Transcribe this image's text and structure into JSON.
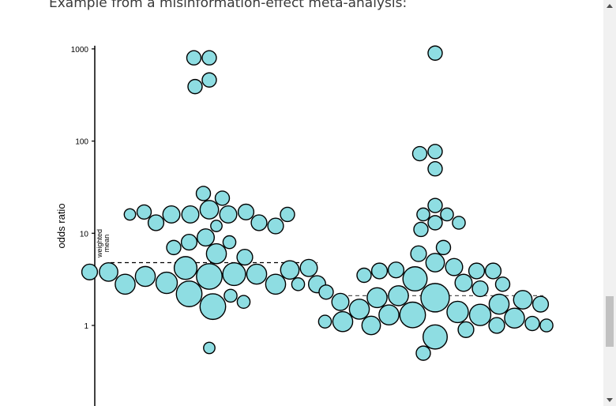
{
  "intro_text": "Example from a misinformation-effect meta-analysis:",
  "colors": {
    "bubble_fill": "#8edde2",
    "bubble_stroke": "#000000",
    "mean_line": "#000000",
    "mean_line_right": "#555555"
  },
  "chart_data": {
    "type": "scatter",
    "subtype": "beeswarm-bubble",
    "ylabel": "odds ratio",
    "y_scale": "log",
    "ylim": [
      0.25,
      1000
    ],
    "y_ticks": [
      1,
      10,
      100,
      1000
    ],
    "y_tick_labels": [
      "1",
      "10",
      "100",
      "1000"
    ],
    "mean_label": "weighted mean",
    "grid": false,
    "series": [
      {
        "weighted_mean": 4.8,
        "points": [
          {
            "or": 800,
            "w": 1
          },
          {
            "or": 800,
            "w": 1
          },
          {
            "or": 460,
            "w": 1
          },
          {
            "or": 390,
            "w": 1
          },
          {
            "or": 27,
            "w": 1
          },
          {
            "or": 24,
            "w": 1
          },
          {
            "or": 18,
            "w": 1.3
          },
          {
            "or": 17,
            "w": 1.1
          },
          {
            "or": 17,
            "w": 1
          },
          {
            "or": 16,
            "w": 1.2
          },
          {
            "or": 16,
            "w": 1.2
          },
          {
            "or": 16,
            "w": 1.2
          },
          {
            "or": 16,
            "w": 1
          },
          {
            "or": 16,
            "w": 0.8
          },
          {
            "or": 13,
            "w": 1.1
          },
          {
            "or": 13,
            "w": 1.1
          },
          {
            "or": 12,
            "w": 0.8
          },
          {
            "or": 12,
            "w": 1.1
          },
          {
            "or": 9,
            "w": 1.2
          },
          {
            "or": 8,
            "w": 1.1
          },
          {
            "or": 8,
            "w": 0.9
          },
          {
            "or": 7,
            "w": 1
          },
          {
            "or": 6,
            "w": 1.4
          },
          {
            "or": 5.5,
            "w": 1.1
          },
          {
            "or": 4.2,
            "w": 1.6
          },
          {
            "or": 4.2,
            "w": 1.2
          },
          {
            "or": 4,
            "w": 1.3
          },
          {
            "or": 3.8,
            "w": 1.3
          },
          {
            "or": 3.8,
            "w": 1.1
          },
          {
            "or": 3.6,
            "w": 1.6
          },
          {
            "or": 3.6,
            "w": 1.4
          },
          {
            "or": 3.4,
            "w": 1.8
          },
          {
            "or": 3.4,
            "w": 1.4
          },
          {
            "or": 2.9,
            "w": 1.5
          },
          {
            "or": 2.8,
            "w": 1.4
          },
          {
            "or": 2.8,
            "w": 1.4
          },
          {
            "or": 2.8,
            "w": 1.2
          },
          {
            "or": 2.8,
            "w": 0.9
          },
          {
            "or": 2.2,
            "w": 1.8
          },
          {
            "or": 2.1,
            "w": 0.9
          },
          {
            "or": 1.8,
            "w": 0.9
          },
          {
            "or": 1.6,
            "w": 1.8
          },
          {
            "or": 0.57,
            "w": 0.8
          }
        ]
      },
      {
        "weighted_mean": 2.1,
        "points": [
          {
            "or": 900,
            "w": 1
          },
          {
            "or": 77,
            "w": 1
          },
          {
            "or": 73,
            "w": 1
          },
          {
            "or": 50,
            "w": 1
          },
          {
            "or": 20,
            "w": 1
          },
          {
            "or": 16,
            "w": 0.9
          },
          {
            "or": 16,
            "w": 0.9
          },
          {
            "or": 13,
            "w": 0.9
          },
          {
            "or": 13,
            "w": 1
          },
          {
            "or": 11,
            "w": 1
          },
          {
            "or": 7,
            "w": 1
          },
          {
            "or": 6,
            "w": 1.1
          },
          {
            "or": 4.8,
            "w": 1.3
          },
          {
            "or": 4.3,
            "w": 1.2
          },
          {
            "or": 4,
            "w": 1.1
          },
          {
            "or": 3.9,
            "w": 1.1
          },
          {
            "or": 3.9,
            "w": 1.1
          },
          {
            "or": 3.9,
            "w": 1.1
          },
          {
            "or": 3.5,
            "w": 1
          },
          {
            "or": 3.2,
            "w": 1.7
          },
          {
            "or": 2.9,
            "w": 1.2
          },
          {
            "or": 2.8,
            "w": 1
          },
          {
            "or": 2.5,
            "w": 1.1
          },
          {
            "or": 2.3,
            "w": 1
          },
          {
            "or": 2.1,
            "w": 1.4
          },
          {
            "or": 2,
            "w": 1.4
          },
          {
            "or": 2,
            "w": 2
          },
          {
            "or": 1.9,
            "w": 1.3
          },
          {
            "or": 1.8,
            "w": 1.2
          },
          {
            "or": 1.7,
            "w": 1.4
          },
          {
            "or": 1.7,
            "w": 1.1
          },
          {
            "or": 1.5,
            "w": 1.4
          },
          {
            "or": 1.4,
            "w": 1.5
          },
          {
            "or": 1.3,
            "w": 1.5
          },
          {
            "or": 1.3,
            "w": 1.8
          },
          {
            "or": 1.3,
            "w": 1.4
          },
          {
            "or": 1.2,
            "w": 1.4
          },
          {
            "or": 1.1,
            "w": 1.4
          },
          {
            "or": 1.1,
            "w": 0.9
          },
          {
            "or": 1.05,
            "w": 1
          },
          {
            "or": 1,
            "w": 1.3
          },
          {
            "or": 1,
            "w": 0.9
          },
          {
            "or": 1,
            "w": 1.1
          },
          {
            "or": 0.9,
            "w": 1.1
          },
          {
            "or": 0.75,
            "w": 1.7
          },
          {
            "or": 0.5,
            "w": 1
          }
        ]
      }
    ]
  }
}
